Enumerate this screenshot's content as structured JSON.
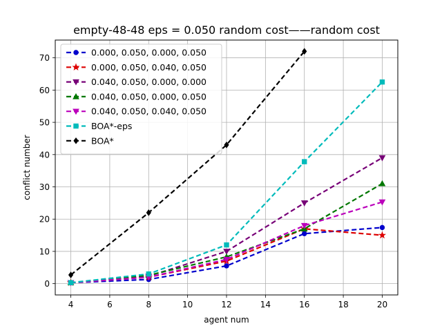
{
  "chart_data": {
    "type": "line",
    "title": "empty-48-48    eps = 0.050    random cost——random cost",
    "xlabel": "agent num",
    "ylabel": "conflict number",
    "xlim": [
      3.2,
      20.8
    ],
    "ylim": [
      -3.5,
      75.5
    ],
    "xticks": [
      4,
      6,
      8,
      10,
      12,
      14,
      16,
      18,
      20
    ],
    "yticks": [
      0,
      10,
      20,
      30,
      40,
      50,
      60,
      70
    ],
    "grid": true,
    "legend_position": "upper-left",
    "series": [
      {
        "name": "0.000, 0.050, 0.000, 0.050",
        "color": "#0000cc",
        "marker": "circle",
        "x": [
          4,
          8,
          12,
          16,
          20
        ],
        "y": [
          0.3,
          1.3,
          5.5,
          15.5,
          17.4
        ]
      },
      {
        "name": "0.000, 0.050, 0.040, 0.050",
        "color": "#dd0000",
        "marker": "star",
        "x": [
          4,
          8,
          12,
          16,
          20
        ],
        "y": [
          0.3,
          2.0,
          7.0,
          17.0,
          15.0
        ]
      },
      {
        "name": "0.040, 0.050, 0.000, 0.000",
        "color": "#770077",
        "marker": "triangle-down",
        "x": [
          4,
          8,
          12,
          16,
          20
        ],
        "y": [
          0.3,
          2.3,
          10.0,
          25.0,
          39.0
        ]
      },
      {
        "name": "0.040, 0.050, 0.000, 0.050",
        "color": "#007700",
        "marker": "triangle-up",
        "x": [
          4,
          8,
          12,
          16,
          20
        ],
        "y": [
          0.3,
          2.6,
          8.3,
          17.0,
          31.0
        ]
      },
      {
        "name": "0.040, 0.050, 0.040, 0.050",
        "color": "#bb00bb",
        "marker": "triangle-down",
        "x": [
          4,
          8,
          12,
          16,
          20
        ],
        "y": [
          0.3,
          2.0,
          7.5,
          18.0,
          25.3
        ]
      },
      {
        "name": "BOA*-eps",
        "color": "#00bbbb",
        "marker": "square",
        "x": [
          4,
          8,
          12,
          16,
          20
        ],
        "y": [
          0.3,
          3.0,
          12.0,
          37.8,
          62.5
        ]
      },
      {
        "name": "BOA*",
        "color": "#000000",
        "marker": "diamond",
        "x": [
          4,
          8,
          12,
          16
        ],
        "y": [
          2.7,
          22.0,
          43.0,
          72.0
        ]
      }
    ]
  }
}
